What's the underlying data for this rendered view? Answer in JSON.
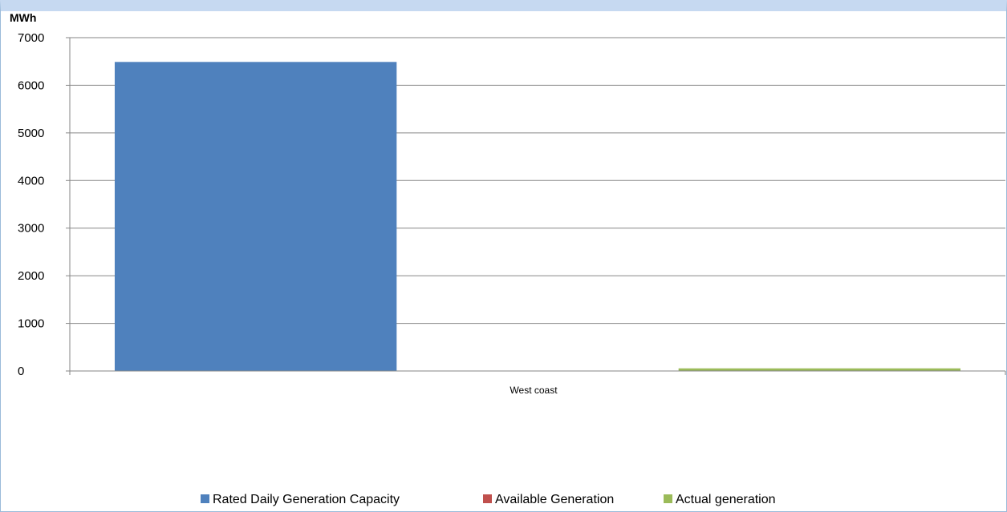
{
  "chart_data": {
    "type": "bar",
    "title": "",
    "xlabel": "",
    "ylabel": "MWh",
    "ylim": [
      0,
      7000
    ],
    "yticks": [
      0,
      1000,
      2000,
      3000,
      4000,
      5000,
      6000,
      7000
    ],
    "categories": [
      "West coast"
    ],
    "grid": true,
    "legend_position": "bottom",
    "series": [
      {
        "name": "Rated Daily Generation Capacity",
        "color": "#4f81bd",
        "values": [
          6490
        ]
      },
      {
        "name": "Available Generation",
        "color": "#c0504d",
        "values": [
          0
        ]
      },
      {
        "name": "Actual generation",
        "color": "#9bbb59",
        "values": [
          55
        ]
      }
    ]
  }
}
